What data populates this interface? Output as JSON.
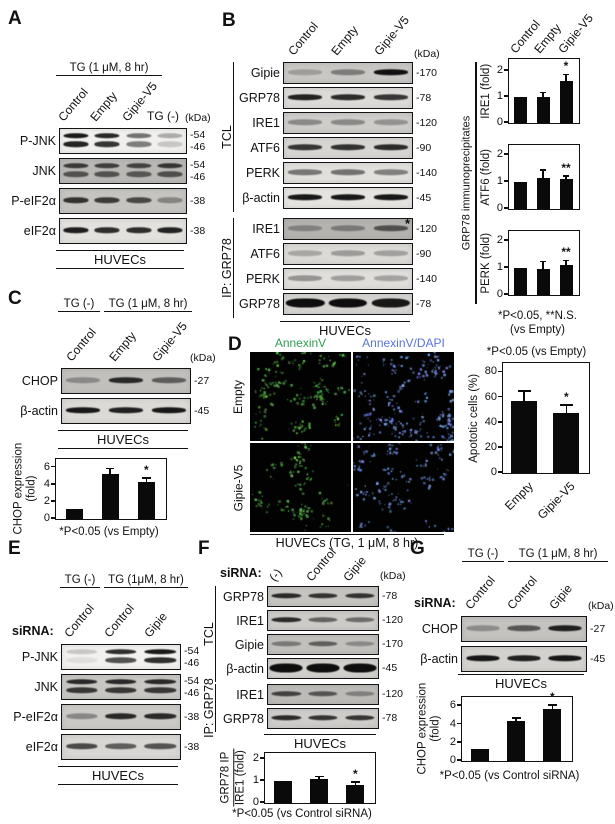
{
  "colors": {
    "annexin_green": "#2f9e52",
    "dapi_blue": "#5b74d8",
    "band": "#0e0e0e",
    "bar": "#0a0a0a"
  },
  "panelA": {
    "letter": "A",
    "treatment": "TG (1 μM, 8 hr)",
    "lanes": [
      "Control",
      "Empty",
      "Gipie-V5"
    ],
    "lane4": "TG (-)",
    "kda_header": "(kDa)",
    "rows": [
      {
        "label": "P-JNK",
        "kda": [
          "54",
          "46"
        ],
        "bg": "#f1f0ee",
        "bands": [
          [
            0.95,
            0.9
          ],
          [
            0.88,
            0.82
          ],
          [
            0.55,
            0.5
          ],
          [
            0.3,
            0.18
          ]
        ]
      },
      {
        "label": "JNK",
        "kda": [
          "54",
          "46"
        ],
        "bg": "#bab8b5",
        "bands": [
          [
            0.75,
            0.6
          ],
          [
            0.72,
            0.6
          ],
          [
            0.7,
            0.58
          ],
          [
            0.78,
            0.62
          ]
        ]
      },
      {
        "label": "P-eIF2α",
        "kda": [
          "38"
        ],
        "bg": "#c6c4c1",
        "bands": [
          0.8,
          0.75,
          0.68,
          0.35
        ]
      },
      {
        "label": "eIF2α",
        "kda": [
          "38"
        ],
        "bg": "#e3e1de",
        "bands": [
          0.92,
          0.85,
          0.85,
          0.9
        ]
      }
    ],
    "footer": "HUVECs"
  },
  "panelB": {
    "letter": "B",
    "lanes": [
      "Control",
      "Empty",
      "Gipie-V5"
    ],
    "kda_header": "(kDa)",
    "groups": [
      {
        "label": "TCL",
        "rows": [
          {
            "label": "Gipie",
            "kda": [
              "170"
            ],
            "bg": "#c9c7c4",
            "bands": [
              0.22,
              0.4,
              0.98
            ]
          },
          {
            "label": "GRP78",
            "kda": [
              "78"
            ],
            "bg": "#dddbd8",
            "bands": [
              0.9,
              0.85,
              0.8
            ]
          },
          {
            "label": "IRE1",
            "kda": [
              "120"
            ],
            "bg": "#cfcdca",
            "bands": [
              0.35,
              0.35,
              0.3
            ]
          },
          {
            "label": "ATF6",
            "kda": [
              "90"
            ],
            "bg": "#d8d6d3",
            "bands": [
              0.8,
              0.82,
              0.85
            ]
          },
          {
            "label": "PERK",
            "kda": [
              "140"
            ],
            "bg": "#e2e0dd",
            "bands": [
              0.5,
              0.52,
              0.45
            ]
          },
          {
            "label": "β-actin",
            "kda": [
              "45"
            ],
            "bg": "#e6e4e1",
            "bands": [
              0.95,
              0.95,
              0.95
            ]
          }
        ]
      },
      {
        "label": "IP: GRP78",
        "rows": [
          {
            "label": "IRE1",
            "kda": [
              "120"
            ],
            "bg": "#b5b3b0",
            "mark": "*",
            "bands": [
              0.3,
              0.35,
              0.6
            ]
          },
          {
            "label": "ATF6",
            "kda": [
              "90"
            ],
            "bg": "#dcdad7",
            "bands": [
              0.25,
              0.3,
              0.28
            ]
          },
          {
            "label": "PERK",
            "kda": [
              "140"
            ],
            "bg": "#e0dedb",
            "bands": [
              0.35,
              0.3,
              0.28
            ]
          },
          {
            "label": "GRP78",
            "kda": [
              "78"
            ],
            "bg": "#d6d4d1",
            "thick": true,
            "bands": [
              1,
              1,
              0.95
            ]
          }
        ]
      }
    ],
    "footer": "HUVECs",
    "charts_side_label": "GRP78 immunoprecipitates",
    "charts_note_line1": "*P<0.05, **N.S.",
    "charts_note_line2": "(vs Empty)"
  },
  "panelC": {
    "letter": "C",
    "treat1": "TG (-)",
    "treat2": "TG (1 μM, 8 hr)",
    "lanes": [
      "Control",
      "Empty",
      "Gipie-V5"
    ],
    "kda_header": "(kDa)",
    "rows": [
      {
        "label": "CHOP",
        "kda": [
          "27"
        ],
        "bg": "#c2c0bd",
        "bands": [
          0.3,
          0.85,
          0.55
        ]
      },
      {
        "label": "β-actin",
        "kda": [
          "45"
        ],
        "bg": "#dcdad7",
        "bands": [
          0.95,
          0.9,
          0.95
        ]
      }
    ],
    "footer": "HUVECs",
    "chart_note": "*P<0.05 (vs Empty)"
  },
  "panelD": {
    "letter": "D",
    "col1": "AnnexinV",
    "col2": "AnnexinV/DAPI",
    "row1": "Empty",
    "row2": "Gipie-V5",
    "footer": "HUVECs (TG, 1 μM, 8 hr)",
    "chart_note": "*P<0.05 (vs Empty)"
  },
  "panelE": {
    "letter": "E",
    "treat1": "TG (-)",
    "treat2": "TG (1μM, 8 hr)",
    "sirna_label": "siRNA:",
    "lanes": [
      "Control",
      "Control",
      "Gipie"
    ],
    "rows": [
      {
        "label": "P-JNK",
        "kda": [
          "54",
          "46"
        ],
        "bg": "#f2f1ef",
        "bands": [
          [
            0.18,
            0.08
          ],
          [
            0.85,
            0.7
          ],
          [
            0.95,
            0.85
          ]
        ]
      },
      {
        "label": "JNK",
        "kda": [
          "54",
          "46"
        ],
        "bg": "#c9c7c4",
        "bands": [
          [
            0.85,
            0.78
          ],
          [
            0.85,
            0.78
          ],
          [
            0.85,
            0.78
          ]
        ]
      },
      {
        "label": "P-eIF2α",
        "kda": [
          "38"
        ],
        "bg": "#cccac7",
        "bands": [
          0.35,
          0.85,
          0.85
        ]
      },
      {
        "label": "eIF2α",
        "kda": [
          "38"
        ],
        "bg": "#d9d7d4",
        "bands": [
          0.7,
          0.6,
          0.65
        ]
      }
    ],
    "footer": "HUVECs"
  },
  "panelF": {
    "letter": "F",
    "sirna_label": "siRNA:",
    "lanes": [
      "(-)",
      "Control",
      "Gipie"
    ],
    "kda_header": "(kDa)",
    "groups": [
      {
        "label": "TCL",
        "rows": [
          {
            "label": "GRP78",
            "kda": [
              "78"
            ],
            "bg": "#c6c4c1",
            "bands": [
              0.85,
              0.8,
              0.8
            ]
          },
          {
            "label": "IRE1",
            "kda": [
              "120"
            ],
            "bg": "#cdcbc8",
            "bands": [
              0.85,
              0.55,
              0.5
            ]
          },
          {
            "label": "Gipie",
            "kda": [
              "170"
            ],
            "bg": "#c2c0bd",
            "bands": [
              0.4,
              0.55,
              0.3
            ]
          },
          {
            "label": "β-actin",
            "kda": [
              "45"
            ],
            "bg": "#d2d0cd",
            "thick": true,
            "bands": [
              1,
              1,
              1
            ]
          }
        ]
      },
      {
        "label": "IP: GRP78",
        "rows": [
          {
            "label": "IRE1",
            "kda": [
              "120"
            ],
            "bg": "#bdbbb8",
            "bands": [
              0.7,
              0.6,
              0.35
            ]
          },
          {
            "label": "GRP78",
            "kda": [
              "78"
            ],
            "bg": "#cfcdca",
            "bands": [
              0.85,
              0.8,
              0.8
            ]
          }
        ]
      }
    ],
    "footer": "HUVECs",
    "chart_note": "*P<0.05 (vs Control siRNA)"
  },
  "panelG": {
    "letter": "G",
    "treat1": "TG (-)",
    "treat2": "TG (1 μM, 8 hr)",
    "sirna_label": "siRNA:",
    "lanes": [
      "Control",
      "Control",
      "Gipie"
    ],
    "kda_header": "(kDa)",
    "rows": [
      {
        "label": "CHOP",
        "kda": [
          "27"
        ],
        "bg": "#c5c3c0",
        "bands": [
          0.3,
          0.6,
          0.9
        ]
      },
      {
        "label": "β-actin",
        "kda": [
          "45"
        ],
        "bg": "#d4d2cf",
        "bands": [
          0.95,
          0.9,
          0.95
        ]
      }
    ],
    "footer": "HUVECs",
    "chart_note": "*P<0.05 (vs Control siRNA)"
  },
  "chart_data": [
    {
      "id": "b-ire1",
      "type": "bar",
      "ylabel": "IRE1 (fold)",
      "categories": [
        "Control",
        "Empty",
        "Gipie-V5"
      ],
      "values": [
        1.0,
        1.0,
        1.6
      ],
      "errors": [
        0,
        0.18,
        0.27
      ],
      "sig": [
        "",
        "",
        "*"
      ],
      "yticks": [
        0,
        1,
        2
      ],
      "ylim": [
        0,
        2.4
      ]
    },
    {
      "id": "b-atf6",
      "type": "bar",
      "ylabel": "ATF6 (fold)",
      "categories": [
        "Control",
        "Empty",
        "Gipie-V5"
      ],
      "values": [
        1.0,
        1.15,
        1.1
      ],
      "errors": [
        0,
        0.3,
        0.13
      ],
      "sig": [
        "",
        "",
        "**"
      ],
      "yticks": [
        0,
        1,
        2
      ],
      "ylim": [
        0,
        2.3
      ]
    },
    {
      "id": "b-perk",
      "type": "bar",
      "ylabel": "PERK (fold)",
      "categories": [
        "Control",
        "Empty",
        "Gipie-V5"
      ],
      "values": [
        1.0,
        0.95,
        1.1
      ],
      "errors": [
        0,
        0.3,
        0.18
      ],
      "sig": [
        "",
        "",
        "**"
      ],
      "yticks": [
        0,
        1,
        2
      ],
      "ylim": [
        0,
        2.3
      ]
    },
    {
      "id": "c-chop",
      "type": "bar",
      "ylabel": "CHOP expression (fold)",
      "ylabel_lines": [
        "CHOP expression",
        "(fold)"
      ],
      "categories": [
        "Control",
        "Empty",
        "Gipie-V5"
      ],
      "values": [
        1.2,
        5.2,
        4.3
      ],
      "errors": [
        0,
        0.7,
        0.5
      ],
      "sig": [
        "",
        "",
        "*"
      ],
      "yticks": [
        0,
        2,
        4,
        6
      ],
      "ylim": [
        0,
        6.8
      ]
    },
    {
      "id": "d-apoptotic",
      "type": "bar",
      "ylabel": "Apototic cells (%)",
      "categories": [
        "Empty",
        "Gipie-V5"
      ],
      "values": [
        57,
        48
      ],
      "errors": [
        8,
        6
      ],
      "sig": [
        "",
        "*"
      ],
      "yticks": [
        0,
        20,
        40,
        60,
        80
      ],
      "ylim": [
        0,
        86
      ]
    },
    {
      "id": "f-grp78ip-ire1",
      "type": "bar",
      "ylabel": "GRP78 IP / IRE1 (fold)",
      "ylabel_lines": [
        "GRP78 IP",
        "IRE1 (fold)"
      ],
      "fraction": true,
      "categories": [
        "(-)",
        "Control",
        "Gipie"
      ],
      "values": [
        1.0,
        1.07,
        0.8
      ],
      "errors": [
        0,
        0.15,
        0.17
      ],
      "sig": [
        "",
        "",
        "*"
      ],
      "yticks": [
        0,
        1,
        2
      ],
      "ylim": [
        0,
        2.2
      ]
    },
    {
      "id": "g-chop",
      "type": "bar",
      "ylabel": "CHOP expression (fold)",
      "ylabel_lines": [
        "CHOP expression",
        "(fold)"
      ],
      "categories": [
        "Control",
        "Control",
        "Gipie"
      ],
      "values": [
        1.3,
        4.4,
        5.7
      ],
      "errors": [
        0,
        0.3,
        0.45
      ],
      "sig": [
        "",
        "",
        "*"
      ],
      "yticks": [
        0,
        2,
        4,
        6
      ],
      "ylim": [
        0,
        6.8
      ]
    }
  ]
}
